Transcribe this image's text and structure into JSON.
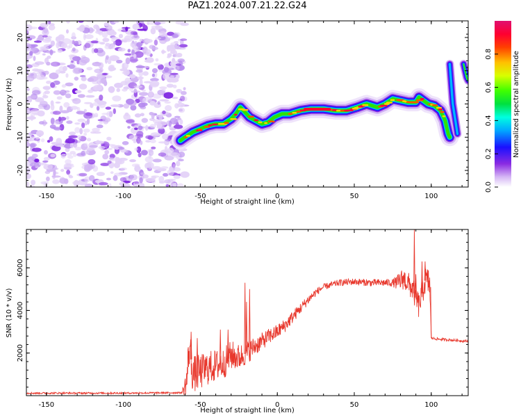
{
  "figure_title": "PAZ1.2024.007.21.22.G24",
  "colors": {
    "snr_line": "#e8372c",
    "noise": "#9b55e8",
    "axis": "#000000"
  },
  "chart_data": [
    {
      "type": "heatmap",
      "name": "spectrogram",
      "xlabel": "Height of straight line (km)",
      "ylabel": "Frequency (Hz)",
      "xlim": [
        -163,
        124
      ],
      "ylim": [
        -25,
        25
      ],
      "x_ticks": [
        -150,
        -100,
        -50,
        0,
        50,
        100
      ],
      "y_ticks": [
        -20,
        -10,
        0,
        10,
        20
      ],
      "noise_region_x": [
        -163,
        -63
      ],
      "signal_ridge": [
        [
          -63,
          -11
        ],
        [
          -60,
          -10
        ],
        [
          -55,
          -8.5
        ],
        [
          -50,
          -7.5
        ],
        [
          -45,
          -6.5
        ],
        [
          -40,
          -6
        ],
        [
          -35,
          -6
        ],
        [
          -30,
          -4.5
        ],
        [
          -27,
          -3
        ],
        [
          -24,
          -1
        ],
        [
          -21,
          -2.5
        ],
        [
          -18,
          -4
        ],
        [
          -14,
          -5
        ],
        [
          -10,
          -6
        ],
        [
          -6,
          -5.5
        ],
        [
          -2,
          -4
        ],
        [
          3,
          -3
        ],
        [
          8,
          -3
        ],
        [
          15,
          -2
        ],
        [
          22,
          -1.5
        ],
        [
          30,
          -1.5
        ],
        [
          38,
          -2
        ],
        [
          45,
          -2
        ],
        [
          52,
          -1
        ],
        [
          58,
          0
        ],
        [
          65,
          -1
        ],
        [
          70,
          0
        ],
        [
          75,
          1.5
        ],
        [
          80,
          1
        ],
        [
          85,
          0.5
        ],
        [
          90,
          0.5
        ],
        [
          92,
          2
        ],
        [
          95,
          1
        ],
        [
          98,
          0
        ],
        [
          102,
          -0.5
        ],
        [
          106,
          -2
        ],
        [
          109,
          -5
        ],
        [
          110,
          -7
        ],
        [
          111,
          -9
        ],
        [
          112,
          -10
        ]
      ],
      "secondary_ridge": [
        [
          112,
          12
        ],
        [
          113,
          6
        ],
        [
          114,
          0
        ],
        [
          116,
          -6
        ],
        [
          117,
          -9
        ],
        [
          121,
          12
        ],
        [
          122,
          10
        ],
        [
          123,
          8
        ],
        [
          124,
          7
        ]
      ],
      "colorbar": {
        "label": "Normalized spectral amplitude",
        "ticks": [
          0.0,
          0.2,
          0.4,
          0.6,
          0.8
        ],
        "range": [
          0,
          1
        ]
      }
    },
    {
      "type": "line",
      "name": "snr",
      "xlabel": "Height of straight line (km)",
      "ylabel": "SNR (10 * v/v)",
      "xlim": [
        -163,
        124
      ],
      "ylim": [
        0,
        7800
      ],
      "x_ticks": [
        -150,
        -100,
        -50,
        0,
        50,
        100
      ],
      "y_ticks": [
        2000,
        4000,
        6000
      ],
      "profile": [
        [
          -163,
          120
        ],
        [
          -100,
          120
        ],
        [
          -62,
          140
        ],
        [
          -59,
          600
        ],
        [
          -57,
          2400
        ],
        [
          -55,
          1000
        ],
        [
          -50,
          1100
        ],
        [
          -45,
          1300
        ],
        [
          -40,
          1400
        ],
        [
          -35,
          1500
        ],
        [
          -30,
          1900
        ],
        [
          -25,
          1800
        ],
        [
          -20,
          2000
        ],
        [
          -15,
          2300
        ],
        [
          -10,
          2550
        ],
        [
          -5,
          2800
        ],
        [
          0,
          3000
        ],
        [
          5,
          3300
        ],
        [
          10,
          3700
        ],
        [
          15,
          4100
        ],
        [
          20,
          4500
        ],
        [
          25,
          4850
        ],
        [
          30,
          5100
        ],
        [
          40,
          5300
        ],
        [
          50,
          5350
        ],
        [
          60,
          5300
        ],
        [
          70,
          5300
        ],
        [
          78,
          5300
        ],
        [
          82,
          5500
        ],
        [
          88,
          5000
        ],
        [
          92,
          4200
        ],
        [
          96,
          5400
        ],
        [
          99,
          5300
        ],
        [
          100,
          2700
        ],
        [
          105,
          2650
        ],
        [
          115,
          2600
        ],
        [
          124,
          2550
        ]
      ],
      "noise_amplitude": [
        [
          -163,
          40
        ],
        [
          -62,
          40
        ],
        [
          -58,
          900
        ],
        [
          -30,
          700
        ],
        [
          -10,
          400
        ],
        [
          10,
          300
        ],
        [
          30,
          150
        ],
        [
          75,
          180
        ],
        [
          80,
          500
        ],
        [
          99,
          700
        ],
        [
          100,
          60
        ],
        [
          124,
          60
        ]
      ],
      "spikes": [
        [
          -56,
          3000
        ],
        [
          -52,
          2700
        ],
        [
          -37,
          3100
        ],
        [
          -32,
          3100
        ],
        [
          -21,
          5300
        ],
        [
          -20,
          4400
        ],
        [
          -18,
          5000
        ],
        [
          89,
          7800
        ],
        [
          90,
          5700
        ],
        [
          94,
          6300
        ],
        [
          96,
          6300
        ]
      ]
    }
  ]
}
